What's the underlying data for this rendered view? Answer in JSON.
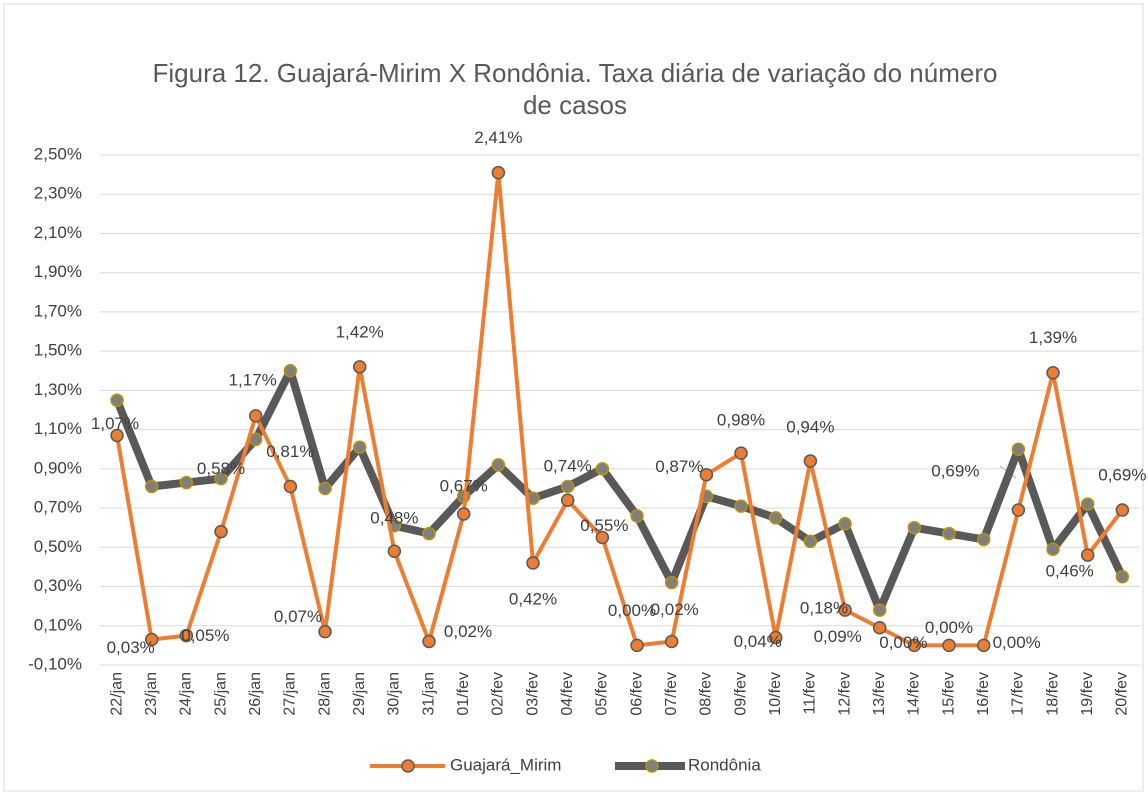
{
  "chart_data": {
    "type": "line",
    "title": "Figura 12. Guajará-Mirim X Rondônia. Taxa diária de variação do número de casos",
    "categories": [
      "22/jan",
      "23/jan",
      "24/jan",
      "25/jan",
      "26/jan",
      "27/jan",
      "28/jan",
      "29/jan",
      "30/jan",
      "31/jan",
      "01/fev",
      "02/fev",
      "03/fev",
      "04/fev",
      "05/fev",
      "06/fev",
      "07/fev",
      "08/fev",
      "09/fev",
      "10/fev",
      "11/fev",
      "12/fev",
      "13/fev",
      "14/fev",
      "15/fev",
      "16/fev",
      "17/fev",
      "18/fev",
      "19/fev",
      "20/fev"
    ],
    "series": [
      {
        "name": "Guajará_Mirim",
        "color": "#ed7d31",
        "values": [
          1.07,
          0.03,
          0.05,
          0.58,
          1.17,
          0.81,
          0.07,
          1.42,
          0.48,
          0.02,
          0.67,
          2.41,
          0.42,
          0.74,
          0.55,
          0.0,
          0.02,
          0.87,
          0.98,
          0.04,
          0.94,
          0.18,
          0.09,
          0.0,
          0.0,
          0.0,
          0.69,
          1.39,
          0.46,
          0.69
        ],
        "value_labels": [
          "1,07%",
          "0,03%",
          "0,05%",
          "0,58%",
          "1,17%",
          "0,81%",
          "0,07%",
          "1,42%",
          "0,48%",
          "0,02%",
          "0,67%",
          "2,41%",
          "0,42%",
          "0,74%",
          "0,55%",
          "0,00%",
          "0,02%",
          "0,87%",
          "0,98%",
          "0,04%",
          "0,94%",
          "0,18%",
          "0,09%",
          "0,00%",
          "0,00%",
          "0,00%",
          "0,69%",
          "1,39%",
          "0,46%",
          "0,69%"
        ]
      },
      {
        "name": "Rondônia",
        "color": "#595959",
        "values": [
          1.25,
          0.81,
          0.83,
          0.85,
          1.05,
          1.4,
          0.8,
          1.01,
          0.61,
          0.57,
          0.76,
          0.92,
          0.75,
          0.81,
          0.9,
          0.66,
          0.32,
          0.76,
          0.71,
          0.65,
          0.53,
          0.62,
          0.18,
          0.6,
          0.57,
          0.54,
          1.0,
          0.49,
          0.72,
          0.35
        ]
      }
    ],
    "ylim": [
      -0.1,
      2.5
    ],
    "yticks": [
      {
        "value": -0.1,
        "label": "-0,10%"
      },
      {
        "value": 0.1,
        "label": "0,10%"
      },
      {
        "value": 0.3,
        "label": "0,30%"
      },
      {
        "value": 0.5,
        "label": "0,50%"
      },
      {
        "value": 0.7,
        "label": "0,70%"
      },
      {
        "value": 0.9,
        "label": "0,90%"
      },
      {
        "value": 1.1,
        "label": "1,10%"
      },
      {
        "value": 1.3,
        "label": "1,30%"
      },
      {
        "value": 1.5,
        "label": "1,50%"
      },
      {
        "value": 1.7,
        "label": "1,70%"
      },
      {
        "value": 1.9,
        "label": "1,90%"
      },
      {
        "value": 2.1,
        "label": "2,10%"
      },
      {
        "value": 2.3,
        "label": "2,30%"
      },
      {
        "value": 2.5,
        "label": "2,50%"
      }
    ],
    "grid": true
  }
}
